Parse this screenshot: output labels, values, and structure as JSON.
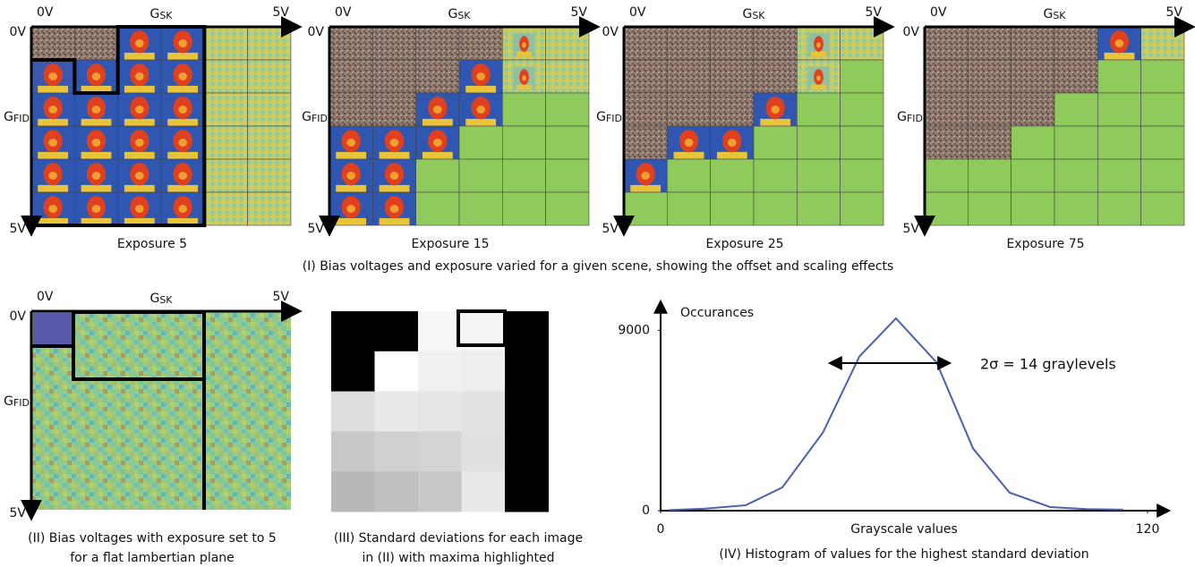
{
  "panel_1": {
    "grids": [
      {
        "x_start": "0V",
        "x_label": {
          "main": "G",
          "sub": "SK"
        },
        "x_end": "5V",
        "y_start": "0V",
        "y_label": {
          "main": "G",
          "sub": "FID"
        },
        "y_end": "5V",
        "caption": "Exposure 5"
      },
      {
        "x_start": "0V",
        "x_label": {
          "main": "G",
          "sub": "SK"
        },
        "x_end": "5V",
        "y_start": "0V",
        "y_label": {
          "main": "G",
          "sub": "FID"
        },
        "y_end": "5V",
        "caption": "Exposure 15"
      },
      {
        "x_start": "0V",
        "x_label": {
          "main": "G",
          "sub": "SK"
        },
        "x_end": "5V",
        "y_start": "0V",
        "y_label": {
          "main": "G",
          "sub": "FID"
        },
        "y_end": "5V",
        "caption": "Exposure 25"
      },
      {
        "x_start": "0V",
        "x_label": {
          "main": "G",
          "sub": "SK"
        },
        "x_end": "5V",
        "y_start": "0V",
        "y_label": {
          "main": "G",
          "sub": "FID"
        },
        "y_end": "5V",
        "caption": "Exposure 75"
      }
    ],
    "caption": "(I) Bias voltages and exposure varied for a given scene, showing the offset and scaling effects"
  },
  "panel_2": {
    "x_start": "0V",
    "x_label": {
      "main": "G",
      "sub": "SK"
    },
    "x_end": "5V",
    "y_start": "0V",
    "y_label": {
      "main": "G",
      "sub": "FID"
    },
    "y_end": "5V",
    "caption": [
      "(II) Bias voltages with exposure set to 5",
      "for a flat lambertian plane"
    ]
  },
  "panel_3": {
    "caption": [
      "(III) Standard deviations for each image",
      "in (II) with maxima highlighted"
    ]
  },
  "chart_data": {
    "type": "line",
    "y_label": "Occurances",
    "x_label": "Grayscale values",
    "annotation": "2σ = 14 graylevels",
    "x": [
      2,
      11,
      21,
      30,
      40,
      49,
      58,
      68,
      77,
      86,
      96,
      105,
      114
    ],
    "series": [
      {
        "color": "#4a5fad",
        "values": [
          30,
          100,
          270,
          1160,
          3900,
          7700,
          9600,
          7400,
          3100,
          900,
          180,
          80,
          50
        ]
      }
    ],
    "xlim": [
      0,
      120
    ],
    "ylim": [
      0,
      10000
    ],
    "xticks": [
      0,
      120
    ],
    "yticks": [
      0,
      9000
    ],
    "caption": "(IV) Histogram of values for the highest standard deviation"
  }
}
